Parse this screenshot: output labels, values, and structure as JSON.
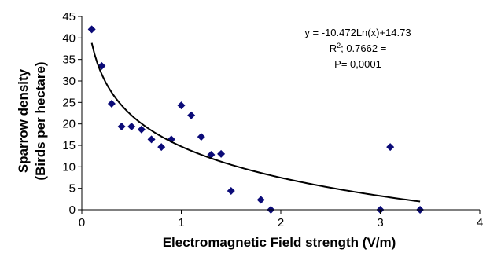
{
  "chart_data": {
    "type": "scatter",
    "title": "",
    "xlabel": "Electromagnetic Field strength (V/m)",
    "ylabel_line1": "Sparrow density",
    "ylabel_line2": "(Birds per hectare)",
    "xlim": [
      0,
      4
    ],
    "ylim": [
      0,
      45
    ],
    "xticks": [
      0,
      1,
      2,
      3,
      4
    ],
    "yticks": [
      0,
      5,
      10,
      15,
      20,
      25,
      30,
      35,
      40,
      45
    ],
    "grid": false,
    "legend": "none",
    "marker": "diamond",
    "marker_color": "#0b0b78",
    "series": [
      {
        "x": [
          0.1,
          0.2,
          0.3,
          0.4,
          0.5,
          0.6,
          0.7,
          0.8,
          0.9,
          1.0,
          1.1,
          1.2,
          1.3,
          1.4,
          1.5,
          1.8,
          1.9,
          3.0,
          3.1,
          3.4
        ],
        "y": [
          42,
          33.5,
          24.7,
          19.4,
          19.4,
          18.7,
          16.4,
          14.6,
          16.4,
          24.3,
          22,
          17,
          12.8,
          13,
          4.4,
          2.3,
          0,
          0,
          14.6,
          0
        ]
      }
    ],
    "trendline": {
      "type": "logarithmic",
      "a": -10.472,
      "b": 14.73,
      "x_range": [
        0.1,
        3.4
      ],
      "color": "#000000"
    },
    "annotations": {
      "equation": "y = -10.472Ln(x)+14.73",
      "r2_prefix": "R",
      "r2_sup": "2",
      "r2_suffix": "; 0.7662 =",
      "p_value": "P= 0,0001"
    }
  }
}
